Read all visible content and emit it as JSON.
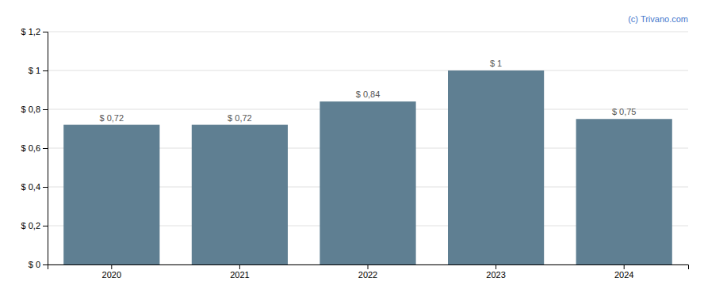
{
  "chart_data": {
    "type": "bar",
    "categories": [
      "2020",
      "2021",
      "2022",
      "2023",
      "2024"
    ],
    "values": [
      0.72,
      0.72,
      0.84,
      1.0,
      0.75
    ],
    "value_labels": [
      "$ 0,72",
      "$ 0,72",
      "$ 0,84",
      "$ 1",
      "$ 0,75"
    ],
    "color": "#5f7f92",
    "ylim": [
      0,
      1.2
    ],
    "yticks": [
      {
        "value": 0,
        "label": "$ 0"
      },
      {
        "value": 0.2,
        "label": "$ 0,2"
      },
      {
        "value": 0.4,
        "label": "$ 0,4"
      },
      {
        "value": 0.6,
        "label": "$ 0,6"
      },
      {
        "value": 0.8,
        "label": "$ 0,8"
      },
      {
        "value": 1.0,
        "label": "$ 1"
      },
      {
        "value": 1.2,
        "label": "$ 1,2"
      }
    ],
    "grid": true,
    "data_labels": true,
    "annotations": [
      "(c) Trivano.com"
    ]
  }
}
